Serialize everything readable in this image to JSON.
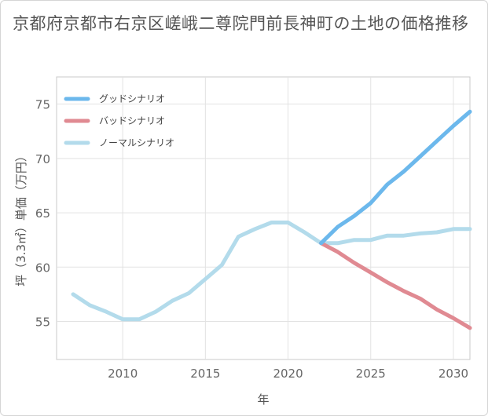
{
  "title": "京都府京都市右京区嵯峨二尊院門前長神町の土地の価格推移",
  "chart_data": {
    "type": "line",
    "xlabel": "年",
    "ylabel": "坪（3.3㎡）単価（万円）",
    "xlim": [
      2006,
      2031
    ],
    "ylim": [
      51.5,
      77.5
    ],
    "xticks": [
      2010,
      2015,
      2020,
      2025,
      2030
    ],
    "yticks": [
      55,
      60,
      65,
      70,
      75
    ],
    "grid": true,
    "legend_position": "top-left",
    "series": [
      {
        "name": "グッドシナリオ",
        "color": "#6cb8ec",
        "x": [
          2022,
          2023,
          2024,
          2025,
          2026,
          2027,
          2028,
          2029,
          2030,
          2031
        ],
        "y": [
          62.2,
          63.7,
          64.7,
          65.9,
          67.6,
          68.8,
          70.2,
          71.6,
          73.0,
          74.3
        ]
      },
      {
        "name": "バッドシナリオ",
        "color": "#e08a92",
        "x": [
          2022,
          2023,
          2024,
          2025,
          2026,
          2027,
          2028,
          2029,
          2030,
          2031
        ],
        "y": [
          62.2,
          61.4,
          60.4,
          59.5,
          58.6,
          57.8,
          57.1,
          56.1,
          55.3,
          54.4
        ]
      },
      {
        "name": "ノーマルシナリオ",
        "color": "#b3dbeb",
        "x": [
          2007,
          2008,
          2009,
          2010,
          2011,
          2012,
          2013,
          2014,
          2015,
          2016,
          2017,
          2018,
          2019,
          2020,
          2021,
          2022,
          2023,
          2024,
          2025,
          2026,
          2027,
          2028,
          2029,
          2030,
          2031
        ],
        "y": [
          57.5,
          56.5,
          55.9,
          55.2,
          55.2,
          55.9,
          56.9,
          57.6,
          58.9,
          60.2,
          62.8,
          63.5,
          64.1,
          64.1,
          63.2,
          62.2,
          62.2,
          62.5,
          62.5,
          62.9,
          62.9,
          63.1,
          63.2,
          63.5,
          63.5
        ]
      }
    ]
  }
}
